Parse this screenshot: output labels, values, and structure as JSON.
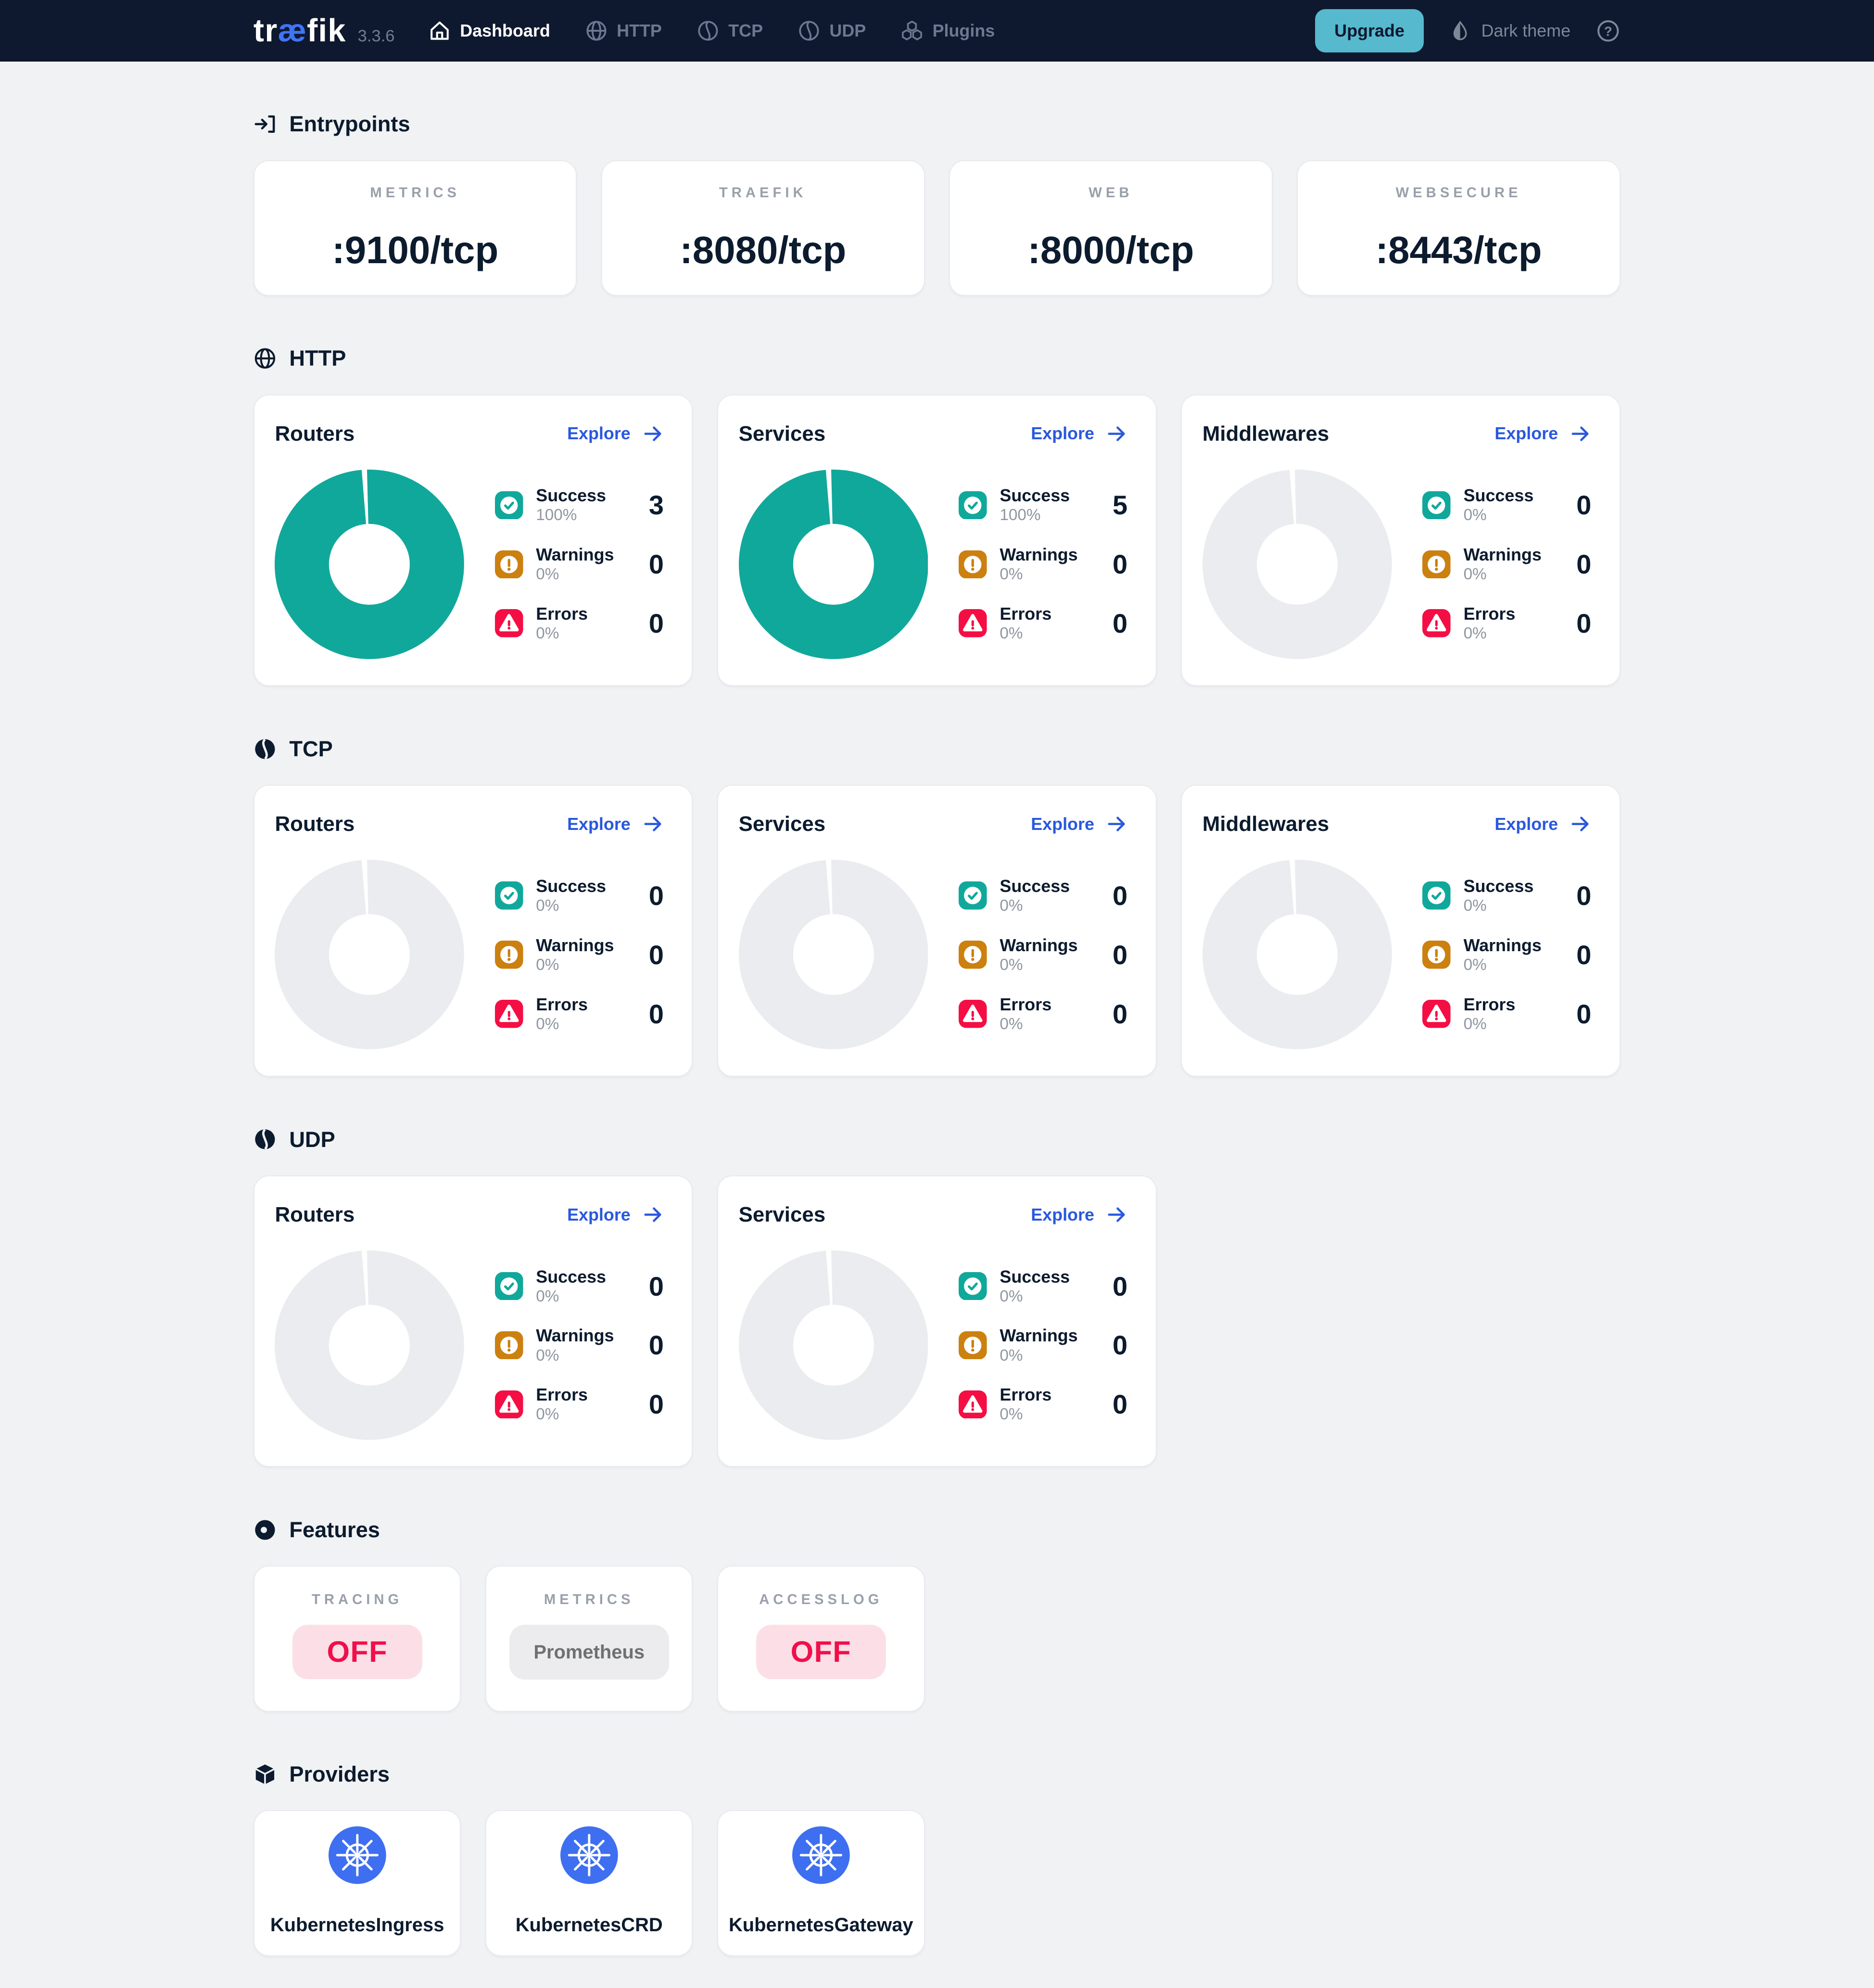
{
  "navbar": {
    "brand": {
      "pre": "tr",
      "mid": "æ",
      "post": "fik"
    },
    "version": "3.3.6",
    "items": [
      {
        "label": "Dashboard",
        "icon": "home",
        "active": true
      },
      {
        "label": "HTTP",
        "icon": "globe",
        "active": false
      },
      {
        "label": "TCP",
        "icon": "proxy",
        "active": false
      },
      {
        "label": "UDP",
        "icon": "proxy",
        "active": false
      },
      {
        "label": "Plugins",
        "icon": "plugins",
        "active": false
      }
    ],
    "upgrade_label": "Upgrade",
    "theme_label": "Dark theme"
  },
  "entrypoints": {
    "title": "Entrypoints",
    "cards": [
      {
        "label": "METRICS",
        "value": ":9100/tcp"
      },
      {
        "label": "TRAEFIK",
        "value": ":8080/tcp"
      },
      {
        "label": "WEB",
        "value": ":8000/tcp"
      },
      {
        "label": "WEBSECURE",
        "value": ":8443/tcp"
      }
    ]
  },
  "http": {
    "title": "HTTP",
    "cards": [
      {
        "title": "Routers",
        "explore": "Explore",
        "donut_filled": true,
        "stats": [
          {
            "type": "success",
            "label": "Success",
            "percent": "100%",
            "count": "3"
          },
          {
            "type": "warnings",
            "label": "Warnings",
            "percent": "0%",
            "count": "0"
          },
          {
            "type": "errors",
            "label": "Errors",
            "percent": "0%",
            "count": "0"
          }
        ]
      },
      {
        "title": "Services",
        "explore": "Explore",
        "donut_filled": true,
        "stats": [
          {
            "type": "success",
            "label": "Success",
            "percent": "100%",
            "count": "5"
          },
          {
            "type": "warnings",
            "label": "Warnings",
            "percent": "0%",
            "count": "0"
          },
          {
            "type": "errors",
            "label": "Errors",
            "percent": "0%",
            "count": "0"
          }
        ]
      },
      {
        "title": "Middlewares",
        "explore": "Explore",
        "donut_filled": false,
        "stats": [
          {
            "type": "success",
            "label": "Success",
            "percent": "0%",
            "count": "0"
          },
          {
            "type": "warnings",
            "label": "Warnings",
            "percent": "0%",
            "count": "0"
          },
          {
            "type": "errors",
            "label": "Errors",
            "percent": "0%",
            "count": "0"
          }
        ]
      }
    ]
  },
  "tcp": {
    "title": "TCP",
    "cards": [
      {
        "title": "Routers",
        "explore": "Explore",
        "donut_filled": false,
        "stats": [
          {
            "type": "success",
            "label": "Success",
            "percent": "0%",
            "count": "0"
          },
          {
            "type": "warnings",
            "label": "Warnings",
            "percent": "0%",
            "count": "0"
          },
          {
            "type": "errors",
            "label": "Errors",
            "percent": "0%",
            "count": "0"
          }
        ]
      },
      {
        "title": "Services",
        "explore": "Explore",
        "donut_filled": false,
        "stats": [
          {
            "type": "success",
            "label": "Success",
            "percent": "0%",
            "count": "0"
          },
          {
            "type": "warnings",
            "label": "Warnings",
            "percent": "0%",
            "count": "0"
          },
          {
            "type": "errors",
            "label": "Errors",
            "percent": "0%",
            "count": "0"
          }
        ]
      },
      {
        "title": "Middlewares",
        "explore": "Explore",
        "donut_filled": false,
        "stats": [
          {
            "type": "success",
            "label": "Success",
            "percent": "0%",
            "count": "0"
          },
          {
            "type": "warnings",
            "label": "Warnings",
            "percent": "0%",
            "count": "0"
          },
          {
            "type": "errors",
            "label": "Errors",
            "percent": "0%",
            "count": "0"
          }
        ]
      }
    ]
  },
  "udp": {
    "title": "UDP",
    "cards": [
      {
        "title": "Routers",
        "explore": "Explore",
        "donut_filled": false,
        "stats": [
          {
            "type": "success",
            "label": "Success",
            "percent": "0%",
            "count": "0"
          },
          {
            "type": "warnings",
            "label": "Warnings",
            "percent": "0%",
            "count": "0"
          },
          {
            "type": "errors",
            "label": "Errors",
            "percent": "0%",
            "count": "0"
          }
        ]
      },
      {
        "title": "Services",
        "explore": "Explore",
        "donut_filled": false,
        "stats": [
          {
            "type": "success",
            "label": "Success",
            "percent": "0%",
            "count": "0"
          },
          {
            "type": "warnings",
            "label": "Warnings",
            "percent": "0%",
            "count": "0"
          },
          {
            "type": "errors",
            "label": "Errors",
            "percent": "0%",
            "count": "0"
          }
        ]
      }
    ]
  },
  "features": {
    "title": "Features",
    "cards": [
      {
        "label": "TRACING",
        "value": "OFF",
        "variant": "danger"
      },
      {
        "label": "METRICS",
        "value": "Prometheus",
        "variant": "neutral"
      },
      {
        "label": "ACCESSLOG",
        "value": "OFF",
        "variant": "danger"
      }
    ]
  },
  "providers": {
    "title": "Providers",
    "items": [
      {
        "name": "KubernetesIngress"
      },
      {
        "name": "KubernetesCRD"
      },
      {
        "name": "KubernetesGateway"
      }
    ]
  },
  "colors": {
    "navbar_bg": "#0e182e",
    "page_bg": "#f1f2f4",
    "accent_teal": "#10a89b",
    "warning_orange": "#cc800f",
    "error_red": "#f40e44",
    "link_blue": "#2958de",
    "upgrade_teal": "#56b9ce",
    "kubernetes_blue": "#3e6ff0",
    "donut_empty": "#eaecef",
    "off_pink_bg": "#fcdfe6",
    "off_red_text": "#f00f4b"
  }
}
